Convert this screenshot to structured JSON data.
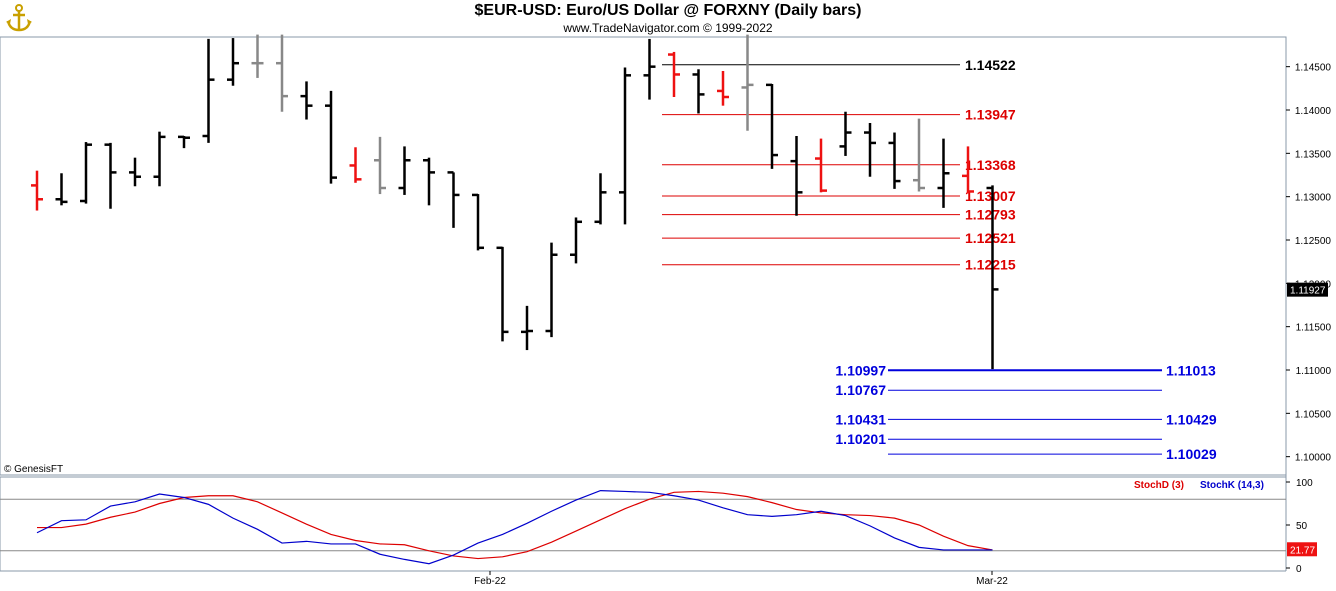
{
  "header": {
    "title": "$EUR-USD:  Euro/US Dollar @ FORXNY  (Daily bars)",
    "subtitle": "www.TradeNavigator.com © 1999-2022",
    "logo_icon": "anchor-icon"
  },
  "copyright": "© GenesisFT",
  "colors": {
    "up_bar": "#000000",
    "down_bar": "#ee1111",
    "neutral_bar": "#888888",
    "support": "#0000dd",
    "resistance": "#dd0000",
    "stoch_d": "#dd0000",
    "stoch_k": "#0000cc",
    "last_price_bg": "#000000",
    "stoch_value_bg": "#ee1111"
  },
  "chart_data": [
    {
      "type": "ohlc",
      "title": "$EUR-USD:  Euro/US Dollar @ FORXNY  (Daily bars)",
      "ylim": [
        1.0945,
        1.1488
      ],
      "yticks": [
        "1.14500",
        "1.14000",
        "1.13500",
        "1.13000",
        "1.12500",
        "1.12000",
        "1.11500",
        "1.11000",
        "1.10500",
        "1.10000"
      ],
      "xticks": [
        "Feb-22",
        "Mar-22"
      ],
      "last_price": "1.11927",
      "bars": [
        {
          "o": 1.1313,
          "h": 1.133,
          "l": 1.1284,
          "c": 1.1297,
          "color": "red"
        },
        {
          "o": 1.1297,
          "h": 1.1327,
          "l": 1.129,
          "c": 1.1294,
          "color": "black"
        },
        {
          "o": 1.1295,
          "h": 1.1363,
          "l": 1.1292,
          "c": 1.136,
          "color": "black"
        },
        {
          "o": 1.136,
          "h": 1.1362,
          "l": 1.1286,
          "c": 1.1328,
          "color": "black"
        },
        {
          "o": 1.1328,
          "h": 1.1345,
          "l": 1.1312,
          "c": 1.1323,
          "color": "black"
        },
        {
          "o": 1.1323,
          "h": 1.1375,
          "l": 1.1312,
          "c": 1.1369,
          "color": "black"
        },
        {
          "o": 1.1369,
          "h": 1.137,
          "l": 1.1356,
          "c": 1.1368,
          "color": "black"
        },
        {
          "o": 1.137,
          "h": 1.1482,
          "l": 1.1362,
          "c": 1.1435,
          "color": "black"
        },
        {
          "o": 1.1435,
          "h": 1.1483,
          "l": 1.1428,
          "c": 1.1454,
          "color": "black"
        },
        {
          "o": 1.1454,
          "h": 1.1487,
          "l": 1.1437,
          "c": 1.1454,
          "color": "gray"
        },
        {
          "o": 1.1454,
          "h": 1.1487,
          "l": 1.1398,
          "c": 1.1416,
          "color": "gray"
        },
        {
          "o": 1.1416,
          "h": 1.1433,
          "l": 1.1389,
          "c": 1.1405,
          "color": "black"
        },
        {
          "o": 1.1405,
          "h": 1.1422,
          "l": 1.1315,
          "c": 1.1322,
          "color": "black"
        },
        {
          "o": 1.1336,
          "h": 1.1357,
          "l": 1.1316,
          "c": 1.132,
          "color": "red"
        },
        {
          "o": 1.1342,
          "h": 1.1369,
          "l": 1.1303,
          "c": 1.131,
          "color": "gray"
        },
        {
          "o": 1.131,
          "h": 1.1358,
          "l": 1.1302,
          "c": 1.1342,
          "color": "black"
        },
        {
          "o": 1.1342,
          "h": 1.1345,
          "l": 1.129,
          "c": 1.1328,
          "color": "black"
        },
        {
          "o": 1.1328,
          "h": 1.1328,
          "l": 1.1264,
          "c": 1.1302,
          "color": "black"
        },
        {
          "o": 1.1302,
          "h": 1.1303,
          "l": 1.1238,
          "c": 1.1241,
          "color": "black"
        },
        {
          "o": 1.1241,
          "h": 1.1242,
          "l": 1.1133,
          "c": 1.1144,
          "color": "black"
        },
        {
          "o": 1.1144,
          "h": 1.1174,
          "l": 1.1123,
          "c": 1.1145,
          "color": "black"
        },
        {
          "o": 1.1145,
          "h": 1.1247,
          "l": 1.1138,
          "c": 1.1233,
          "color": "black"
        },
        {
          "o": 1.1233,
          "h": 1.1276,
          "l": 1.1223,
          "c": 1.1271,
          "color": "black"
        },
        {
          "o": 1.1271,
          "h": 1.1327,
          "l": 1.1268,
          "c": 1.1305,
          "color": "black"
        },
        {
          "o": 1.1305,
          "h": 1.1449,
          "l": 1.1268,
          "c": 1.144,
          "color": "black"
        },
        {
          "o": 1.144,
          "h": 1.1482,
          "l": 1.1412,
          "c": 1.145,
          "color": "black"
        },
        {
          "o": 1.1464,
          "h": 1.1467,
          "l": 1.1415,
          "c": 1.1441,
          "color": "red"
        },
        {
          "o": 1.1441,
          "h": 1.1447,
          "l": 1.1396,
          "c": 1.1418,
          "color": "black"
        },
        {
          "o": 1.1422,
          "h": 1.1445,
          "l": 1.1405,
          "c": 1.1415,
          "color": "red"
        },
        {
          "o": 1.1426,
          "h": 1.1487,
          "l": 1.1376,
          "c": 1.1429,
          "color": "gray"
        },
        {
          "o": 1.1429,
          "h": 1.143,
          "l": 1.1332,
          "c": 1.1348,
          "color": "black"
        },
        {
          "o": 1.1341,
          "h": 1.137,
          "l": 1.1278,
          "c": 1.1305,
          "color": "black"
        },
        {
          "o": 1.1344,
          "h": 1.1367,
          "l": 1.1305,
          "c": 1.1307,
          "color": "red"
        },
        {
          "o": 1.1358,
          "h": 1.1398,
          "l": 1.1347,
          "c": 1.1374,
          "color": "black"
        },
        {
          "o": 1.1374,
          "h": 1.1385,
          "l": 1.1323,
          "c": 1.1362,
          "color": "black"
        },
        {
          "o": 1.1362,
          "h": 1.1374,
          "l": 1.1309,
          "c": 1.1318,
          "color": "black"
        },
        {
          "o": 1.1319,
          "h": 1.139,
          "l": 1.1306,
          "c": 1.131,
          "color": "gray"
        },
        {
          "o": 1.131,
          "h": 1.1367,
          "l": 1.1287,
          "c": 1.1327,
          "color": "black"
        },
        {
          "o": 1.1324,
          "h": 1.1358,
          "l": 1.1304,
          "c": 1.1306,
          "color": "red"
        },
        {
          "o": 1.131,
          "h": 1.1313,
          "l": 1.1101,
          "c": 1.1193,
          "color": "black"
        }
      ],
      "levels": [
        {
          "value": "1.14522",
          "kind": "resistance-black"
        },
        {
          "value": "1.13947",
          "kind": "resistance"
        },
        {
          "value": "1.13368",
          "kind": "resistance"
        },
        {
          "value": "1.13007",
          "kind": "resistance"
        },
        {
          "value": "1.12793",
          "kind": "resistance"
        },
        {
          "value": "1.12521",
          "kind": "resistance"
        },
        {
          "value": "1.12215",
          "kind": "resistance"
        },
        {
          "value": "1.10997",
          "kind": "support"
        },
        {
          "value": "1.11013",
          "kind": "support"
        },
        {
          "value": "1.10767",
          "kind": "support"
        },
        {
          "value": "1.10431",
          "kind": "support"
        },
        {
          "value": "1.10429",
          "kind": "support"
        },
        {
          "value": "1.10201",
          "kind": "support"
        },
        {
          "value": "1.10029",
          "kind": "support"
        }
      ]
    },
    {
      "type": "line",
      "ylim": [
        0,
        100
      ],
      "yticks": [
        "100",
        "50",
        "0"
      ],
      "reference_lines": [
        80,
        20
      ],
      "legend": [
        "StochD (3)",
        "StochK (14,3)"
      ],
      "last_value": "21.77",
      "series": [
        {
          "name": "StochD (3)",
          "values": [
            47,
            47,
            51,
            59,
            65,
            75,
            82,
            84,
            84,
            77,
            64,
            51,
            39,
            32,
            28,
            27,
            20,
            14,
            11,
            13,
            19,
            30,
            43,
            56,
            69,
            80,
            88,
            89,
            87,
            83,
            76,
            68,
            64,
            62,
            61,
            58,
            50,
            37,
            26,
            21
          ]
        },
        {
          "name": "StochK (14,3)",
          "values": [
            41,
            55,
            56,
            72,
            77,
            86,
            82,
            74,
            58,
            45,
            29,
            31,
            28,
            28,
            16,
            10,
            5,
            15,
            29,
            39,
            52,
            66,
            79,
            90,
            89,
            88,
            84,
            79,
            70,
            62,
            60,
            62,
            66,
            61,
            49,
            35,
            24,
            21,
            21,
            21
          ]
        }
      ]
    }
  ]
}
